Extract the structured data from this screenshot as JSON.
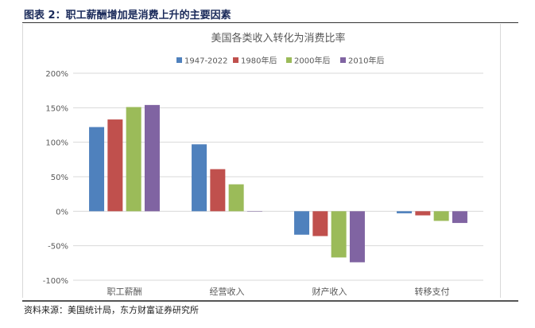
{
  "figure_title": "图表 2：职工薪酬增加是消费上升的主要因素",
  "source": "资料来源：美国统计局，东方财富证券研究所",
  "chart_data": {
    "type": "bar",
    "title": "美国各类收入转化为消费比率",
    "categories": [
      "职工薪酬",
      "经营收入",
      "财产收入",
      "转移支付"
    ],
    "series": [
      {
        "name": "1947-2022",
        "color": "#4f81bd",
        "values": [
          122,
          97,
          -34,
          -3
        ]
      },
      {
        "name": "1980年后",
        "color": "#c0504d",
        "values": [
          133,
          61,
          -36,
          -6
        ]
      },
      {
        "name": "2000年后",
        "color": "#9bbb59",
        "values": [
          151,
          39,
          -67,
          -14
        ]
      },
      {
        "name": "2010年后",
        "color": "#8064a2",
        "values": [
          154,
          0,
          -74,
          -17
        ]
      }
    ],
    "ylim": [
      -100,
      200
    ],
    "yticks": [
      200,
      150,
      100,
      50,
      0,
      -50,
      -100
    ],
    "ytick_labels": [
      "200%",
      "150%",
      "100%",
      "50%",
      "0%",
      "-50%",
      "-100%"
    ],
    "legend_position": "top",
    "grid": true,
    "unit": "%"
  }
}
